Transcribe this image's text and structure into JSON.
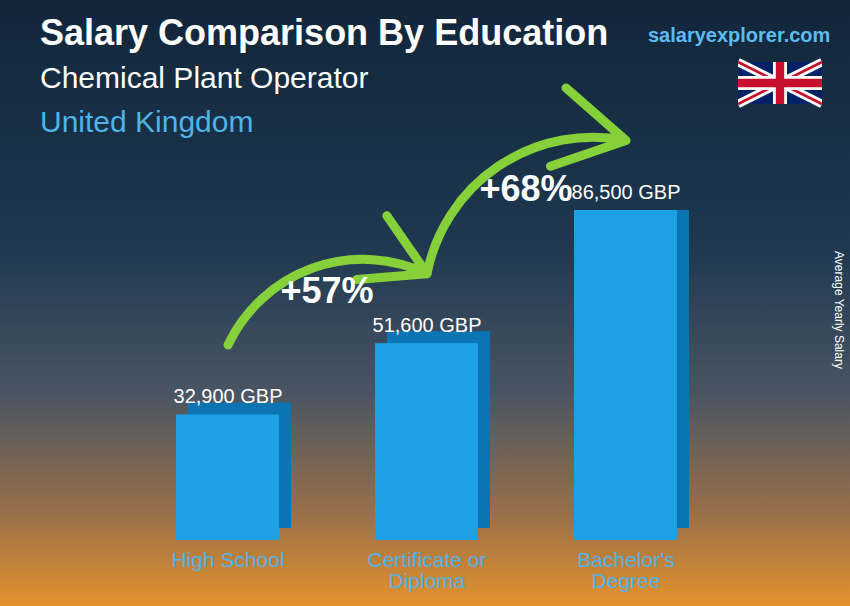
{
  "chart_data": {
    "type": "bar",
    "title": "Salary Comparison By Education",
    "subtitle": "Chemical Plant Operator",
    "country": "United Kingdom",
    "source": "salaryexplorer.com",
    "y_label": "Average Yearly Salary",
    "categories": [
      "High School",
      "Certificate or Diploma",
      "Bachelor's Degree"
    ],
    "values": [
      32900,
      51600,
      86500
    ],
    "value_labels": [
      "32,900 GBP",
      "51,600 GBP",
      "86,500 GBP"
    ],
    "data_labels": true,
    "color": "#1da1e6",
    "ylim": [
      0,
      86500
    ],
    "tick_labels": "x",
    "annotations": [
      {
        "text": "+57%",
        "from": "High School",
        "to": "Certificate or Diploma"
      },
      {
        "text": "+68%",
        "from": "Certificate or Diploma",
        "to": "Bachelor's Degree"
      }
    ]
  }
}
